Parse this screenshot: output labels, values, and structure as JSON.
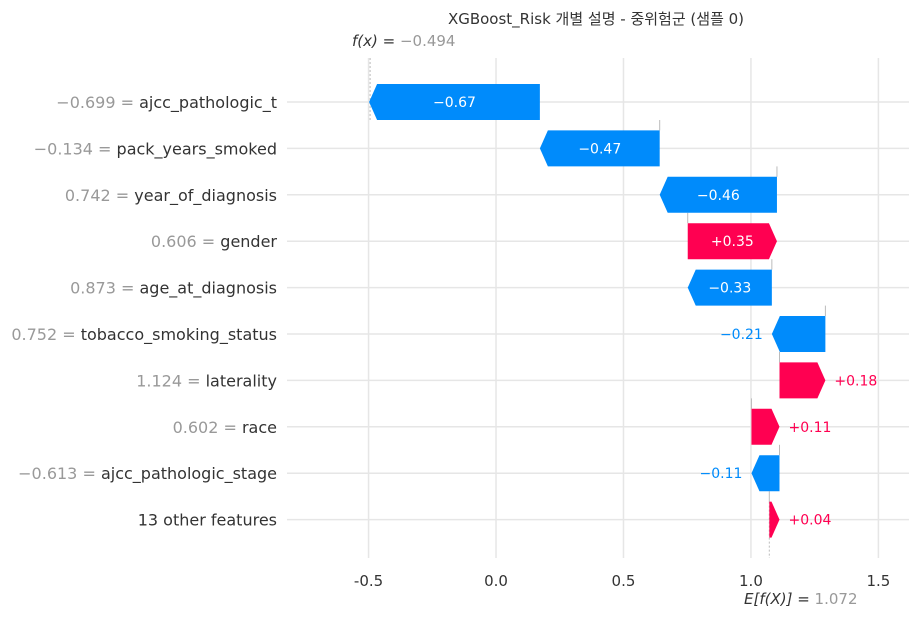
{
  "chart_data": {
    "type": "waterfall",
    "title": "XGBoost_Risk 개별 설명 - 중위험군 (샘플 0)",
    "fx": {
      "label": "f(x) = ",
      "value": "−0.494",
      "numeric": -0.494
    },
    "base": {
      "label": "E[f(X)] = ",
      "value": "1.072",
      "numeric": 1.072
    },
    "xlim": [
      -0.82,
      1.62
    ],
    "x_ticks": [
      "-0.5",
      "0.0",
      "0.5",
      "1.0",
      "1.5"
    ],
    "x_tick_values": [
      -0.5,
      0.0,
      0.5,
      1.0,
      1.5
    ],
    "grid": true,
    "colors": {
      "positive": "#ff0051",
      "negative": "#008bfb",
      "feature_value": "#999999",
      "axis_bg": "#ffffff",
      "grid": "#e6e6e6"
    },
    "features": [
      {
        "value": "−0.699",
        "name": "ajcc_pathologic_t",
        "shap": -0.67,
        "label": "−0.67"
      },
      {
        "value": "−0.134",
        "name": "pack_years_smoked",
        "shap": -0.47,
        "label": "−0.47"
      },
      {
        "value": "0.742",
        "name": "year_of_diagnosis",
        "shap": -0.46,
        "label": "−0.46"
      },
      {
        "value": "0.606",
        "name": "gender",
        "shap": 0.35,
        "label": "+0.35"
      },
      {
        "value": "0.873",
        "name": "age_at_diagnosis",
        "shap": -0.33,
        "label": "−0.33"
      },
      {
        "value": "0.752",
        "name": "tobacco_smoking_status",
        "shap": -0.21,
        "label": "−0.21"
      },
      {
        "value": "1.124",
        "name": "laterality",
        "shap": 0.18,
        "label": "+0.18"
      },
      {
        "value": "0.602",
        "name": "race",
        "shap": 0.11,
        "label": "+0.11"
      },
      {
        "value": "−0.613",
        "name": "ajcc_pathologic_stage",
        "shap": -0.11,
        "label": "−0.11"
      },
      {
        "value": "",
        "name": "13 other features",
        "shap": 0.04,
        "label": "+0.04"
      }
    ]
  }
}
